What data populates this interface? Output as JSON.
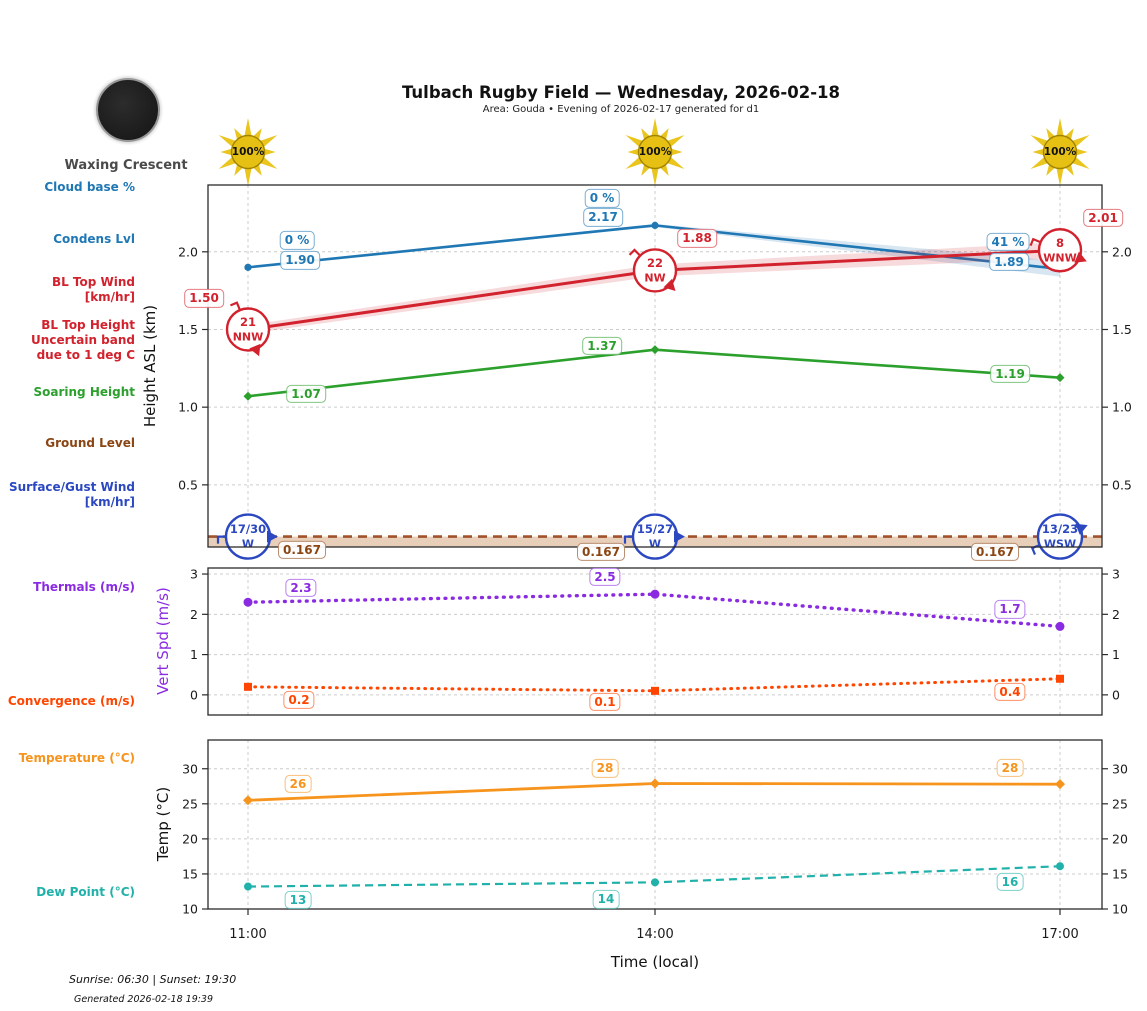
{
  "header": {
    "title": "Tulbach Rugby Field — Wednesday, 2026-02-18",
    "subtitle": "Area: Gouda • Evening of 2026-02-17 generated for d1"
  },
  "moon": {
    "label": "Waxing Crescent"
  },
  "suns": [
    {
      "label": "100%"
    },
    {
      "label": "100%"
    },
    {
      "label": "100%"
    }
  ],
  "left_labels": {
    "cloud_base": "Cloud base %",
    "condens_lvl": "Condens Lvl",
    "bl_top_wind": "BL Top Wind\n[km/hr]",
    "bl_top_height": "BL Top Height\nUncertain band\ndue to 1 deg C",
    "soaring_height": "Soaring Height",
    "ground_level": "Ground Level",
    "surface_wind": "Surface/Gust Wind\n[km/hr]",
    "thermals": "Thermals (m/s)",
    "convergence": "Convergence (m/s)",
    "temperature": "Temperature (°C)",
    "dew_point": "Dew Point (°C)"
  },
  "axes": {
    "height_axis_label": "Height ASL (km)",
    "vert_axis_label": "Vert Spd (m/s)",
    "temp_axis_label": "Temp (°C)",
    "time_axis_label": "Time (local)"
  },
  "time_axis": {
    "ticks": [
      "11:00",
      "14:00",
      "17:00"
    ]
  },
  "footer": {
    "sun_times": "Sunrise: 06:30 | Sunset: 19:30",
    "generated": "Generated 2026-02-18 19:39"
  },
  "colors": {
    "condens_blue": "#1f77b4",
    "bl_red": "#d2222d",
    "soaring_green": "#2ca02c",
    "ground_brown": "#a0522d",
    "ground_label_brown": "#8b4513",
    "surface_blue": "#2b48c0",
    "thermals_purple": "#8a2be2",
    "convergence_orangered": "#ff4500",
    "temperature_orange": "#f7941d",
    "dew_teal": "#20b2aa",
    "sun_yellow": "#e9c51d",
    "grid": "#cccccc",
    "spine": "#2b2b2b"
  },
  "chart_data": [
    {
      "id": "height",
      "type": "line",
      "x": [
        "11:00",
        "14:00",
        "17:00"
      ],
      "ylabel": "Height ASL (km)",
      "ylim": [
        0.1,
        2.43
      ],
      "yticks": [
        0.5,
        1.0,
        1.5,
        2.0
      ],
      "ytick_labels": [
        "0.5",
        "1.0",
        "1.5",
        "2.0"
      ],
      "grid": true,
      "series": [
        {
          "id": "condens",
          "name": "Condens Lvl",
          "values": [
            1.9,
            2.17,
            1.89
          ],
          "labels": [
            "1.90",
            "2.17",
            "1.89"
          ],
          "cloud_base_pct": [
            "0 %",
            "0 %",
            "41 %"
          ]
        },
        {
          "id": "bl_top",
          "name": "BL Top Height",
          "values": [
            1.5,
            1.88,
            2.01
          ],
          "labels": [
            "1.50",
            "1.88",
            "2.01"
          ],
          "wind": [
            {
              "speed": "21",
              "dir": "NNW"
            },
            {
              "speed": "22",
              "dir": "NW"
            },
            {
              "speed": "8",
              "dir": "WNW"
            }
          ]
        },
        {
          "id": "soaring",
          "name": "Soaring Height",
          "values": [
            1.07,
            1.37,
            1.19
          ],
          "labels": [
            "1.07",
            "1.37",
            "1.19"
          ]
        },
        {
          "id": "ground",
          "name": "Ground Level",
          "values": [
            0.167,
            0.167,
            0.167
          ],
          "labels": [
            "0.167",
            "0.167",
            "0.167"
          ]
        },
        {
          "id": "surface_wind",
          "name": "Surface/Gust Wind",
          "wind": [
            {
              "speed": "17/30",
              "dir": "W"
            },
            {
              "speed": "15/27",
              "dir": "W"
            },
            {
              "speed": "13/23",
              "dir": "WSW"
            }
          ]
        }
      ]
    },
    {
      "id": "vert",
      "type": "line",
      "x": [
        "11:00",
        "14:00",
        "17:00"
      ],
      "ylabel": "Vert Spd (m/s)",
      "ylim": [
        -0.5,
        3.15
      ],
      "yticks": [
        0,
        1,
        2,
        3
      ],
      "ytick_labels": [
        "0",
        "1",
        "2",
        "3"
      ],
      "grid": true,
      "series": [
        {
          "id": "thermals",
          "name": "Thermals (m/s)",
          "values": [
            2.3,
            2.5,
            1.7
          ],
          "labels": [
            "2.3",
            "2.5",
            "1.7"
          ]
        },
        {
          "id": "convergence",
          "name": "Convergence (m/s)",
          "values": [
            0.2,
            0.1,
            0.4
          ],
          "labels": [
            "0.2",
            "0.1",
            "0.4"
          ]
        }
      ]
    },
    {
      "id": "temp",
      "type": "line",
      "x": [
        "11:00",
        "14:00",
        "17:00"
      ],
      "ylabel": "Temp (°C)",
      "ylim": [
        10,
        34.1
      ],
      "yticks": [
        10,
        15,
        20,
        25,
        30
      ],
      "ytick_labels": [
        "10",
        "15",
        "20",
        "25",
        "30"
      ],
      "grid": true,
      "series": [
        {
          "id": "temperature",
          "name": "Temperature (°C)",
          "values": [
            25.5,
            27.9,
            27.8
          ],
          "labels": [
            "26",
            "28",
            "28"
          ]
        },
        {
          "id": "dew_point",
          "name": "Dew Point (°C)",
          "values": [
            13.2,
            13.8,
            16.1
          ],
          "labels": [
            "13",
            "14",
            "16"
          ]
        }
      ]
    }
  ]
}
